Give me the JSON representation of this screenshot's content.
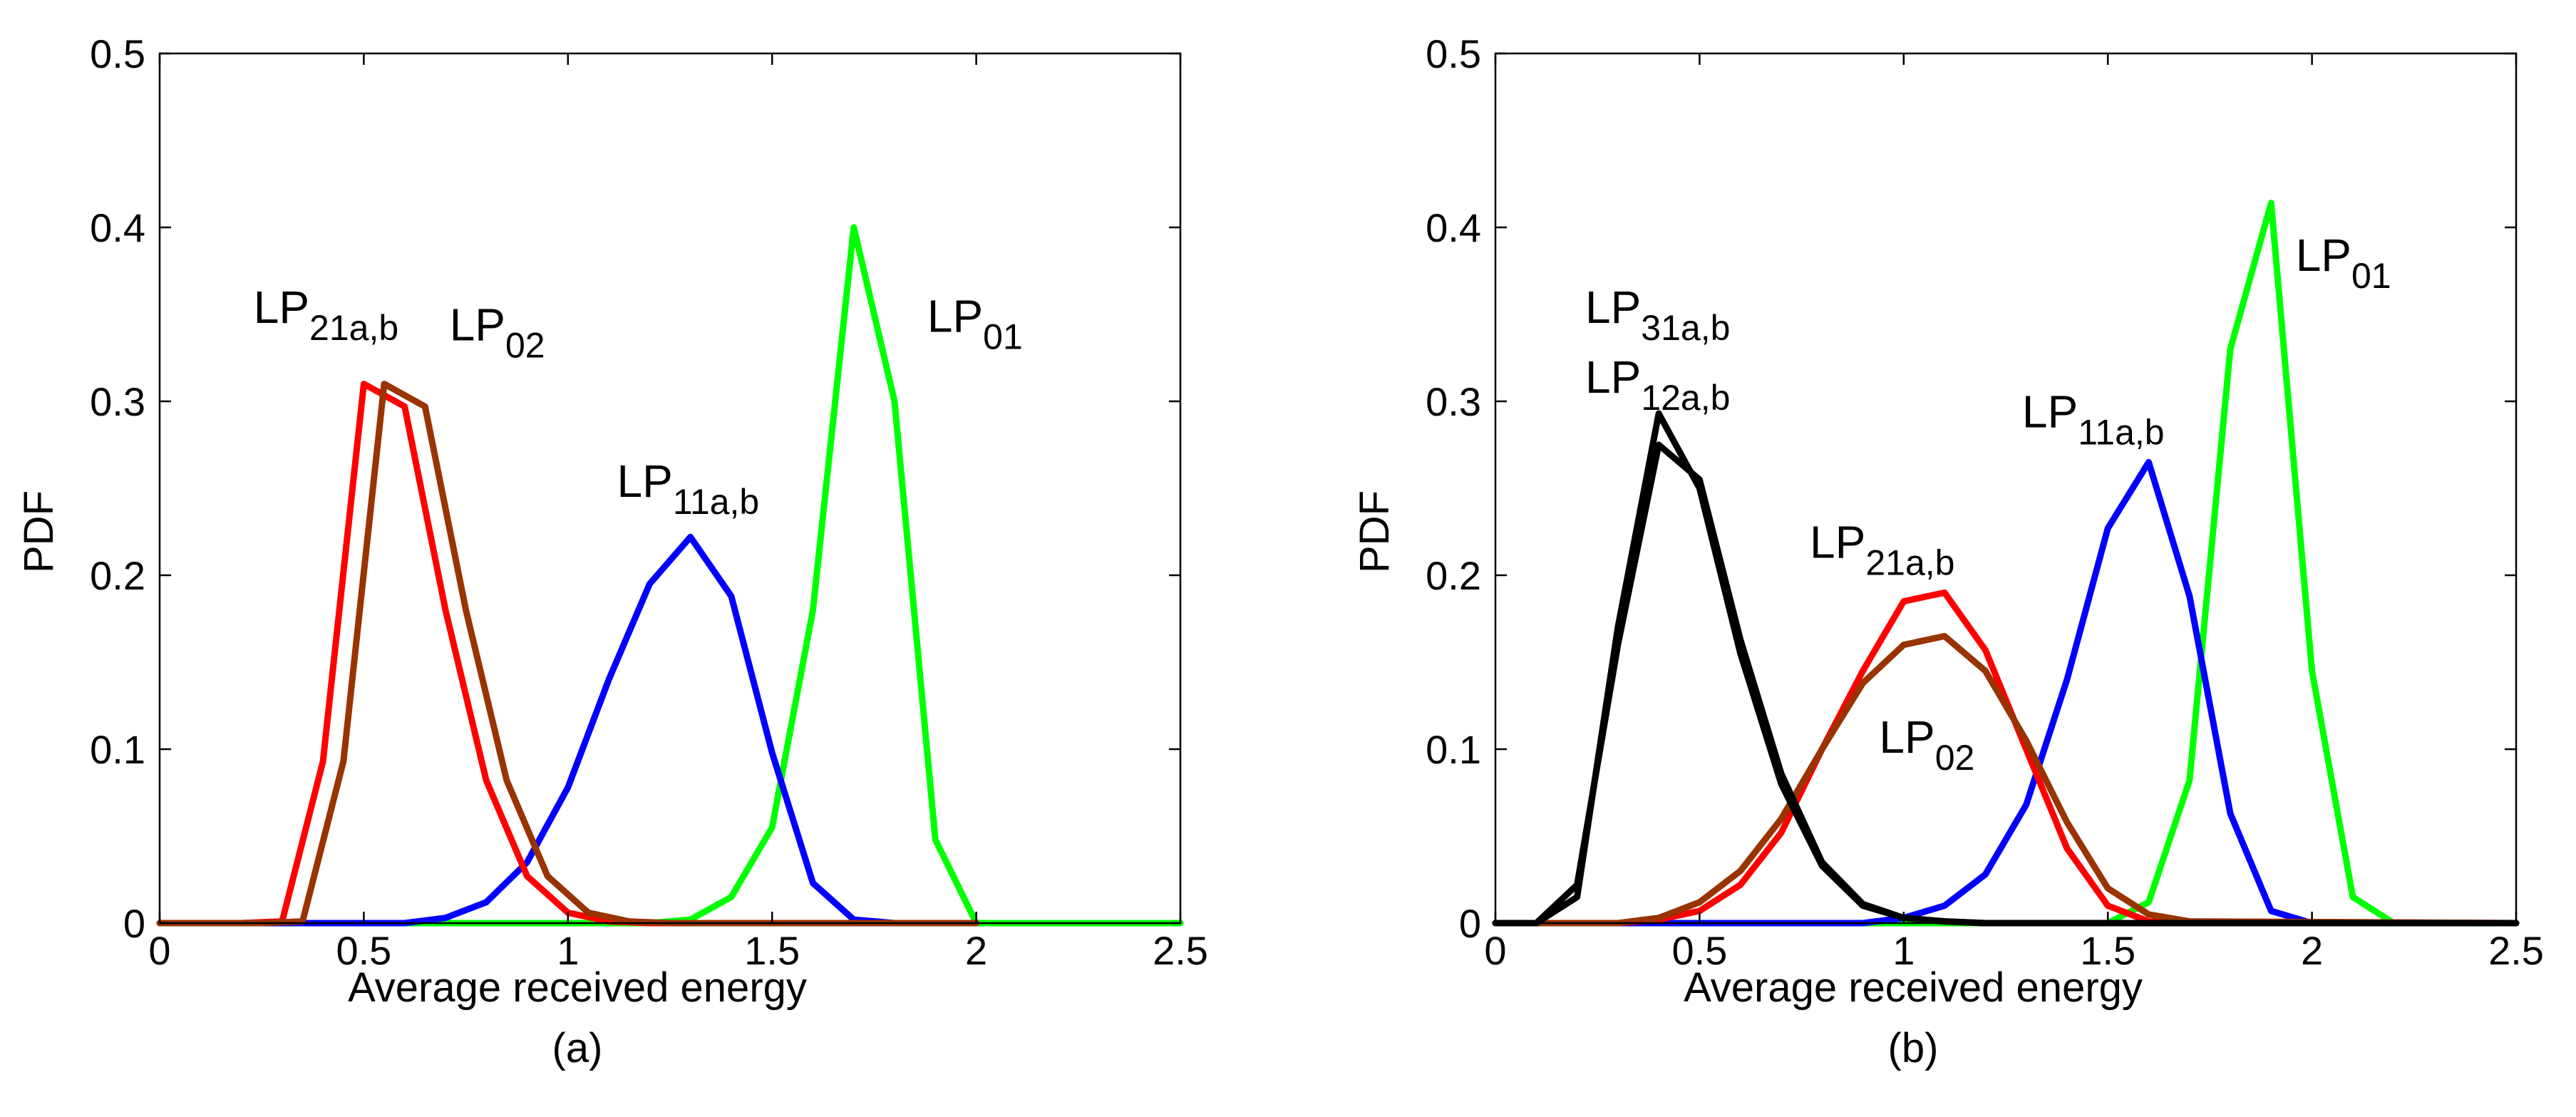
{
  "chart_data": [
    {
      "type": "line",
      "panel_label": "(a)",
      "xlabel": "Average received energy",
      "ylabel": "PDF",
      "xlim": [
        0,
        2.5
      ],
      "ylim": [
        0,
        0.5
      ],
      "xticks": [
        0,
        0.5,
        1,
        1.5,
        2,
        2.5
      ],
      "xtick_labels": [
        "0",
        "0.5",
        "1",
        "1.5",
        "2",
        "2.5"
      ],
      "yticks": [
        0,
        0.1,
        0.2,
        0.3,
        0.4,
        0.5
      ],
      "ytick_labels": [
        "0",
        "0.1",
        "0.2",
        "0.3",
        "0.4",
        "0.5"
      ],
      "grid": false,
      "series": [
        {
          "name": "LP01",
          "label_main": "LP",
          "label_sub": "01",
          "color": "#00ff00",
          "label_at": [
            1.88,
            0.34
          ],
          "x": [
            0,
            1.2,
            1.3,
            1.4,
            1.5,
            1.6,
            1.7,
            1.8,
            1.9,
            2.0,
            2.1,
            2.5
          ],
          "y": [
            0,
            0.0,
            0.002,
            0.015,
            0.055,
            0.18,
            0.4,
            0.3,
            0.048,
            0.0,
            0,
            0
          ]
        },
        {
          "name": "LP11a,b",
          "label_main": "LP",
          "label_sub": "11a,b",
          "color": "#0000ff",
          "label_at": [
            1.12,
            0.245
          ],
          "x": [
            0,
            0.5,
            0.6,
            0.7,
            0.8,
            0.9,
            1.0,
            1.1,
            1.2,
            1.3,
            1.4,
            1.5,
            1.6,
            1.7,
            1.8,
            2.0
          ],
          "y": [
            0,
            0.0,
            0.0,
            0.003,
            0.012,
            0.035,
            0.078,
            0.14,
            0.195,
            0.222,
            0.188,
            0.098,
            0.023,
            0.002,
            0.0,
            0
          ]
        },
        {
          "name": "LP21a,b",
          "label_main": "LP",
          "label_sub": "21a,b",
          "color": "#ff0000",
          "label_at": [
            0.23,
            0.345
          ],
          "x": [
            0,
            0.2,
            0.3,
            0.4,
            0.5,
            0.6,
            0.7,
            0.8,
            0.9,
            1.0,
            1.1,
            1.2,
            2.0
          ],
          "y": [
            0,
            0.0,
            0.001,
            0.093,
            0.31,
            0.297,
            0.18,
            0.082,
            0.027,
            0.006,
            0.001,
            0,
            0
          ]
        },
        {
          "name": "LP02",
          "label_main": "LP",
          "label_sub": "02",
          "color": "#993300",
          "label_at": [
            0.71,
            0.335
          ],
          "x": [
            0,
            0.25,
            0.35,
            0.45,
            0.55,
            0.65,
            0.75,
            0.85,
            0.95,
            1.05,
            1.15,
            1.25,
            2.0
          ],
          "y": [
            0,
            0.0,
            0.001,
            0.093,
            0.31,
            0.297,
            0.18,
            0.082,
            0.027,
            0.006,
            0.001,
            0,
            0
          ]
        }
      ]
    },
    {
      "type": "line",
      "panel_label": "(b)",
      "xlabel": "Average received energy",
      "ylabel": "PDF",
      "xlim": [
        0,
        2.5
      ],
      "ylim": [
        0,
        0.5
      ],
      "xticks": [
        0,
        0.5,
        1,
        1.5,
        2,
        2.5
      ],
      "xtick_labels": [
        "0",
        "0.5",
        "1",
        "1.5",
        "2",
        "2.5"
      ],
      "yticks": [
        0,
        0.1,
        0.2,
        0.3,
        0.4,
        0.5
      ],
      "ytick_labels": [
        "0",
        "0.1",
        "0.2",
        "0.3",
        "0.4",
        "0.5"
      ],
      "grid": false,
      "series": [
        {
          "name": "LP01",
          "label_main": "LP",
          "label_sub": "01",
          "color": "#00ff00",
          "label_at": [
            1.96,
            0.375
          ],
          "x": [
            0,
            1.5,
            1.6,
            1.7,
            1.8,
            1.9,
            2.0,
            2.1,
            2.2,
            2.3,
            2.5
          ],
          "y": [
            0,
            0.0,
            0.012,
            0.082,
            0.33,
            0.414,
            0.145,
            0.015,
            0.0,
            0,
            0
          ]
        },
        {
          "name": "LP11a,b",
          "label_main": "LP",
          "label_sub": "11a,b",
          "color": "#0000ff",
          "label_at": [
            1.29,
            0.285
          ],
          "x": [
            0,
            0.9,
            1.0,
            1.1,
            1.2,
            1.3,
            1.4,
            1.5,
            1.6,
            1.7,
            1.8,
            1.9,
            2.0
          ],
          "y": [
            0,
            0.0,
            0.003,
            0.01,
            0.028,
            0.068,
            0.14,
            0.227,
            0.265,
            0.188,
            0.063,
            0.007,
            0.0
          ]
        },
        {
          "name": "LP21a,b",
          "label_main": "LP",
          "label_sub": "21a,b",
          "color": "#ff0000",
          "label_at": [
            0.77,
            0.21
          ],
          "x": [
            0,
            0.3,
            0.4,
            0.5,
            0.6,
            0.7,
            0.8,
            0.9,
            1.0,
            1.1,
            1.2,
            1.3,
            1.4,
            1.5,
            1.6,
            2.5
          ],
          "y": [
            0,
            0.0,
            0.002,
            0.007,
            0.022,
            0.052,
            0.1,
            0.145,
            0.185,
            0.19,
            0.157,
            0.1,
            0.043,
            0.01,
            0.001,
            0
          ]
        },
        {
          "name": "LP02",
          "label_main": "LP",
          "label_sub": "02",
          "color": "#993300",
          "label_at": [
            0.94,
            0.098
          ],
          "x": [
            0,
            0.3,
            0.4,
            0.5,
            0.6,
            0.7,
            0.8,
            0.9,
            1.0,
            1.1,
            1.2,
            1.3,
            1.4,
            1.5,
            1.6,
            1.7,
            2.5
          ],
          "y": [
            0,
            0.0,
            0.003,
            0.012,
            0.03,
            0.06,
            0.1,
            0.138,
            0.16,
            0.165,
            0.145,
            0.105,
            0.058,
            0.02,
            0.005,
            0.001,
            0
          ]
        },
        {
          "name": "LP31a,b",
          "label_main": "LP",
          "label_sub": "31a,b",
          "color": "#000000",
          "label_at": [
            0.22,
            0.345
          ],
          "x": [
            0,
            0.1,
            0.2,
            0.3,
            0.4,
            0.5,
            0.6,
            0.7,
            0.8,
            0.9,
            1.0,
            1.1,
            1.2,
            2.5
          ],
          "y": [
            0,
            0.0,
            0.015,
            0.17,
            0.293,
            0.25,
            0.155,
            0.08,
            0.033,
            0.01,
            0.003,
            0.001,
            0,
            0
          ]
        },
        {
          "name": "LP12a,b",
          "label_main": "LP",
          "label_sub": "12a,b",
          "color": "#000000",
          "label_at": [
            0.22,
            0.305
          ],
          "x": [
            0,
            0.1,
            0.2,
            0.3,
            0.4,
            0.5,
            0.6,
            0.7,
            0.8,
            0.9,
            1.0,
            1.1,
            1.2,
            2.5
          ],
          "y": [
            0,
            0.0,
            0.022,
            0.16,
            0.275,
            0.255,
            0.163,
            0.086,
            0.035,
            0.011,
            0.003,
            0.001,
            0,
            0
          ]
        }
      ]
    }
  ]
}
